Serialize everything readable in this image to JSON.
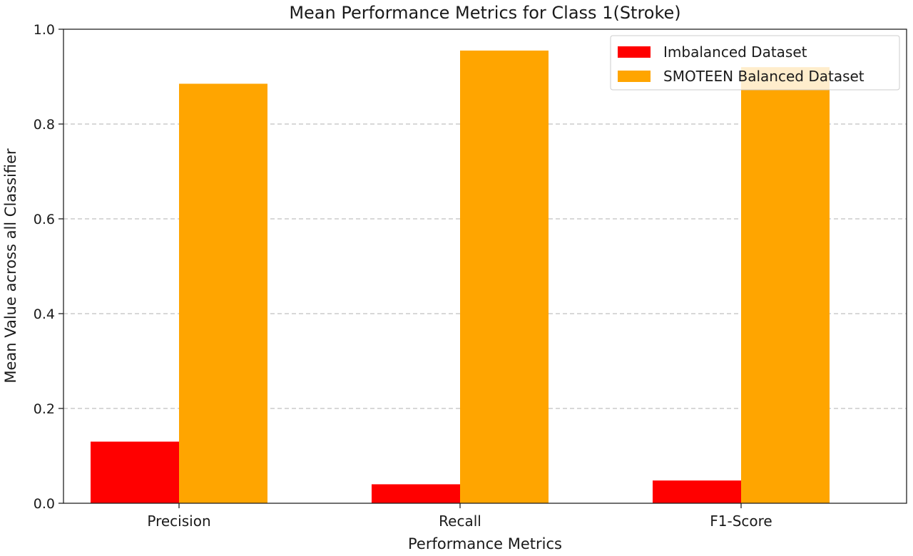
{
  "chart_data": {
    "type": "bar",
    "title": "Mean Performance Metrics for Class 1(Stroke)",
    "xlabel": "Performance Metrics",
    "ylabel": "Mean Value across all Classifier",
    "categories": [
      "Precision",
      "Recall",
      "F1-Score"
    ],
    "series": [
      {
        "name": "Imbalanced Dataset",
        "values": [
          0.13,
          0.04,
          0.048
        ],
        "color": "#ff0000"
      },
      {
        "name": "SMOTEEN Balanced Dataset",
        "values": [
          0.885,
          0.955,
          0.92
        ],
        "color": "#ffa500"
      }
    ],
    "ylim": [
      0,
      1.0
    ],
    "yticks": [
      "0.0",
      "0.2",
      "0.4",
      "0.6",
      "0.8",
      "1.0"
    ],
    "grid": "y-dashed",
    "legend_position": "top-right"
  }
}
